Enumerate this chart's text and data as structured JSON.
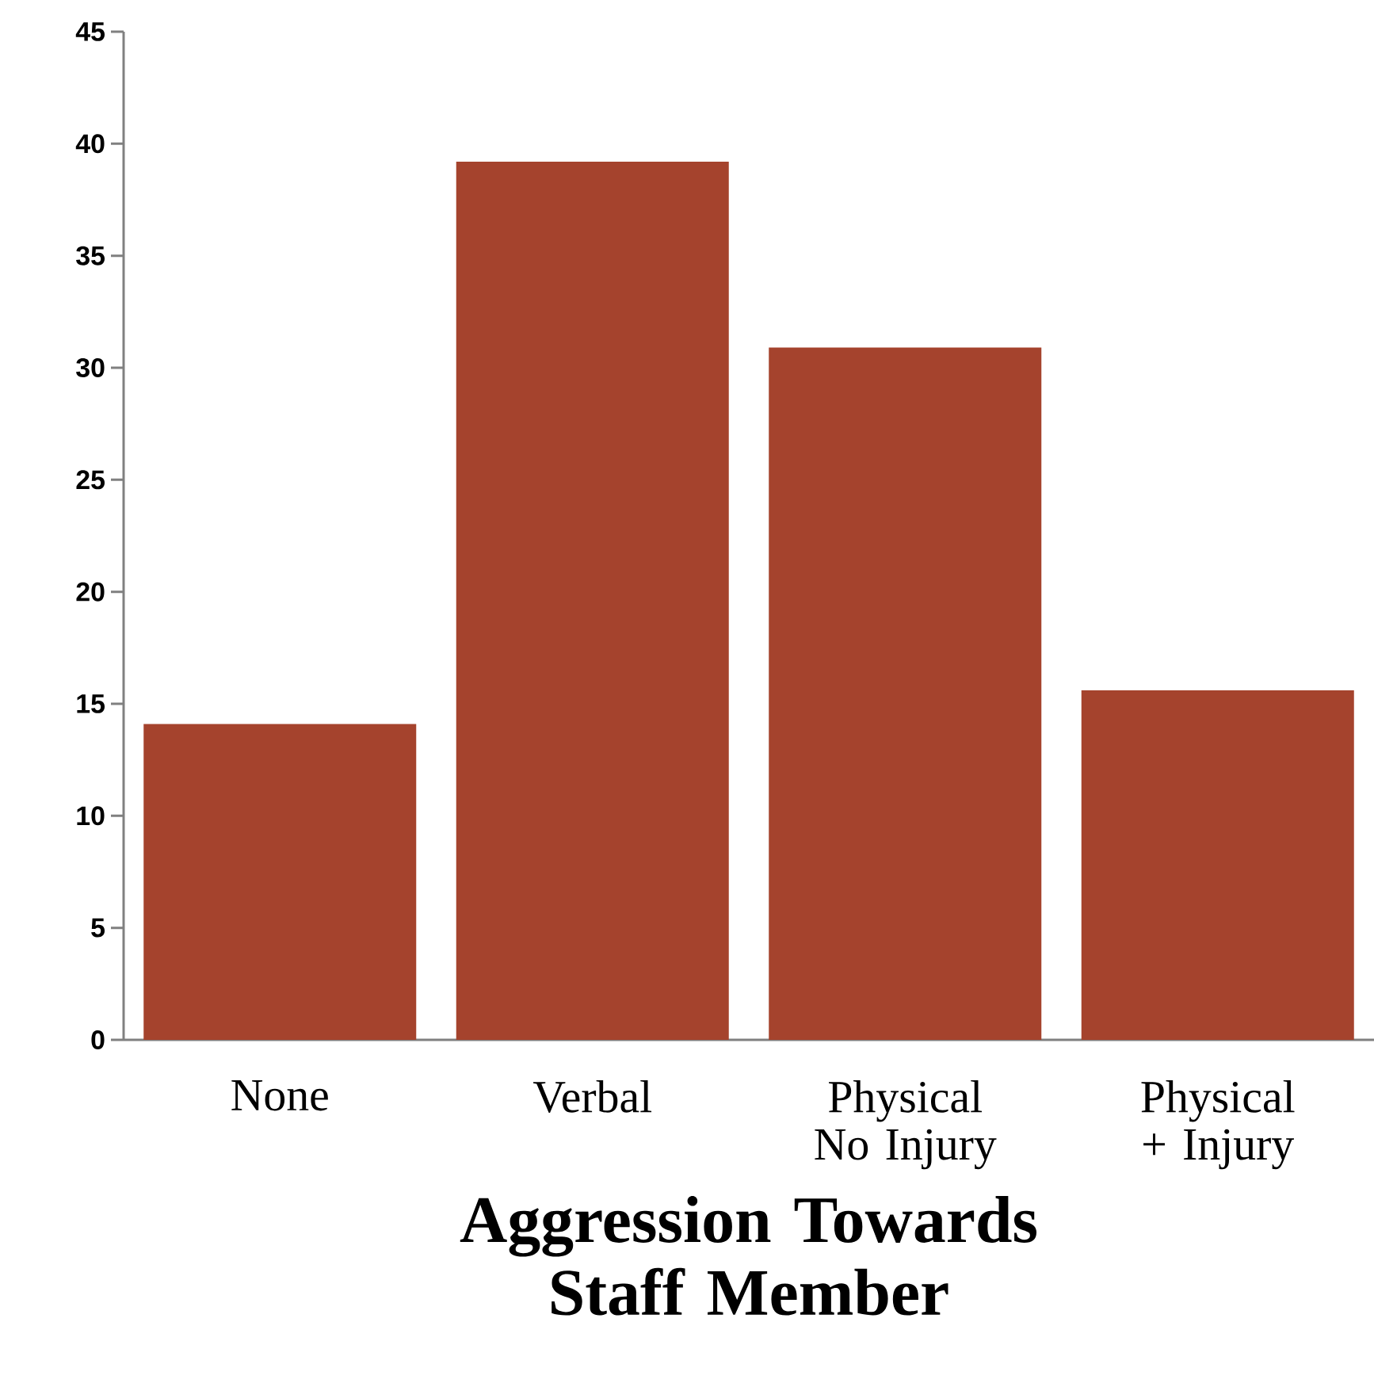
{
  "chart_data": {
    "type": "bar",
    "xlabel": "Aggression Towards Staff Member",
    "categories": [
      "None",
      "Verbal",
      "Physical No Injury",
      "Physical + Injury"
    ],
    "values": [
      14.1,
      39.2,
      30.9,
      15.6
    ],
    "color": "#a5432d",
    "ylim": [
      0,
      45
    ],
    "yticks": [
      0,
      5,
      10,
      15,
      20,
      25,
      30,
      35,
      40,
      45
    ],
    "grid": false
  }
}
